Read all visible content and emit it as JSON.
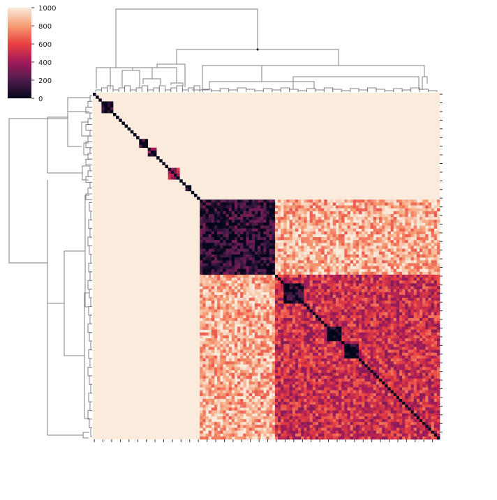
{
  "chart_data": {
    "type": "heatmap",
    "title": "",
    "xlabel": "",
    "ylabel": "",
    "n": 120,
    "value_range": [
      0,
      1000
    ],
    "background_value": 1000,
    "diagonal_value": 0,
    "colorbar": {
      "ticks": [
        0,
        200,
        400,
        600,
        800,
        1000
      ],
      "tick_labels": [
        "0",
        "200",
        "400",
        "600",
        "800",
        "1000"
      ],
      "colormap": "rocket",
      "colors": [
        "#03051a",
        "#4c1d4b",
        "#a11a5b",
        "#e83f3f",
        "#f69c73",
        "#faebdd"
      ]
    },
    "dendrograms": {
      "row": "left",
      "column": "top",
      "line_color": "#808080"
    },
    "blocks": [
      {
        "rows": [
          37,
          63
        ],
        "cols": [
          37,
          63
        ],
        "value": 120
      },
      {
        "rows": [
          37,
          63
        ],
        "cols": [
          63,
          120
        ],
        "value": 850
      },
      {
        "rows": [
          63,
          120
        ],
        "cols": [
          37,
          63
        ],
        "value": 850
      },
      {
        "rows": [
          63,
          120
        ],
        "cols": [
          63,
          120
        ],
        "value": 520
      },
      {
        "rows": [
          66,
          73
        ],
        "cols": [
          66,
          73
        ],
        "value": 60
      },
      {
        "rows": [
          81,
          86
        ],
        "cols": [
          81,
          86
        ],
        "value": 20
      },
      {
        "rows": [
          87,
          92
        ],
        "cols": [
          87,
          92
        ],
        "value": 20
      },
      {
        "rows": [
          3,
          7
        ],
        "cols": [
          3,
          7
        ],
        "value": 90
      },
      {
        "rows": [
          16,
          19
        ],
        "cols": [
          16,
          19
        ],
        "value": 80
      },
      {
        "rows": [
          19,
          22
        ],
        "cols": [
          19,
          22
        ],
        "value": 250
      },
      {
        "rows": [
          26,
          30
        ],
        "cols": [
          26,
          30
        ],
        "value": 380
      },
      {
        "rows": [
          32,
          34
        ],
        "cols": [
          32,
          34
        ],
        "value": 40
      }
    ]
  }
}
